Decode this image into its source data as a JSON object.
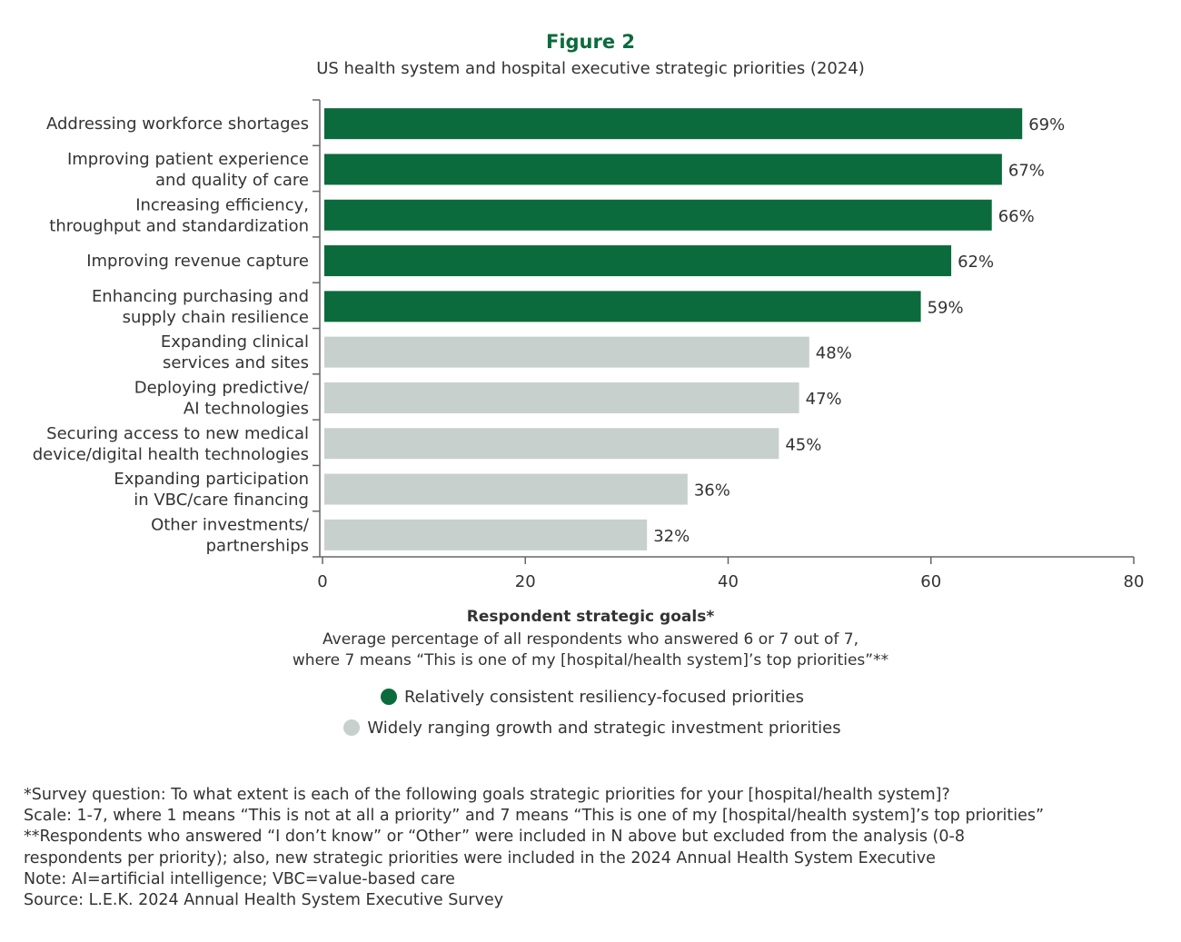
{
  "title": "Figure 2",
  "subtitle": "US health system and hospital executive strategic priorities (2024)",
  "chart_data": {
    "type": "bar",
    "orientation": "horizontal",
    "categories": [
      [
        "Addressing workforce shortages"
      ],
      [
        "Improving patient experience",
        "and quality of care"
      ],
      [
        "Increasing efficiency,",
        "throughput and standardization"
      ],
      [
        "Improving revenue capture"
      ],
      [
        "Enhancing purchasing and",
        "supply chain resilience"
      ],
      [
        "Expanding clinical",
        "services and sites"
      ],
      [
        "Deploying predictive/",
        "AI technologies"
      ],
      [
        "Securing access to new medical",
        "device/digital health technologies"
      ],
      [
        "Expanding participation",
        "in VBC/care financing"
      ],
      [
        "Other investments/",
        "partnerships"
      ]
    ],
    "values": [
      69,
      67,
      66,
      62,
      59,
      48,
      47,
      45,
      36,
      32
    ],
    "data_labels": [
      "69%",
      "67%",
      "66%",
      "62%",
      "59%",
      "48%",
      "47%",
      "45%",
      "36%",
      "32%"
    ],
    "groups": [
      0,
      0,
      0,
      0,
      0,
      1,
      1,
      1,
      1,
      1
    ],
    "xlim": [
      0,
      80
    ],
    "xticks": [
      "0",
      "20",
      "40",
      "60",
      "80"
    ],
    "xlabel": "Respondent strategic goals*",
    "xlabel_sub": [
      "Average percentage of all respondents who answered 6 or 7 out of 7,",
      "where 7 means “This is one of my [hospital/health system]’s top priorities”**"
    ],
    "grid": false,
    "legend_position": "bottom",
    "legend": [
      {
        "name": "Relatively consistent resiliency-focused priorities",
        "color": "#0b6b3c"
      },
      {
        "name": "Widely ranging growth and strategic investment priorities",
        "color": "#c8d0cd"
      }
    ]
  },
  "notes": [
    "*Survey question: To what extent is each of the following goals strategic priorities for your [hospital/health system]?",
    "Scale: 1-7, where 1 means “This is not at all a priority” and 7 means “This is one of my [hospital/health system]’s top priorities”",
    "**Respondents who answered “I don’t know” or “Other” were included in N above but excluded from the analysis (0-8",
    "respondents per priority); also, new strategic priorities were included in the 2024 Annual Health System Executive",
    "Note: AI=artificial intelligence; VBC=value-based care",
    "Source: L.E.K. 2024 Annual Health System Executive Survey"
  ]
}
